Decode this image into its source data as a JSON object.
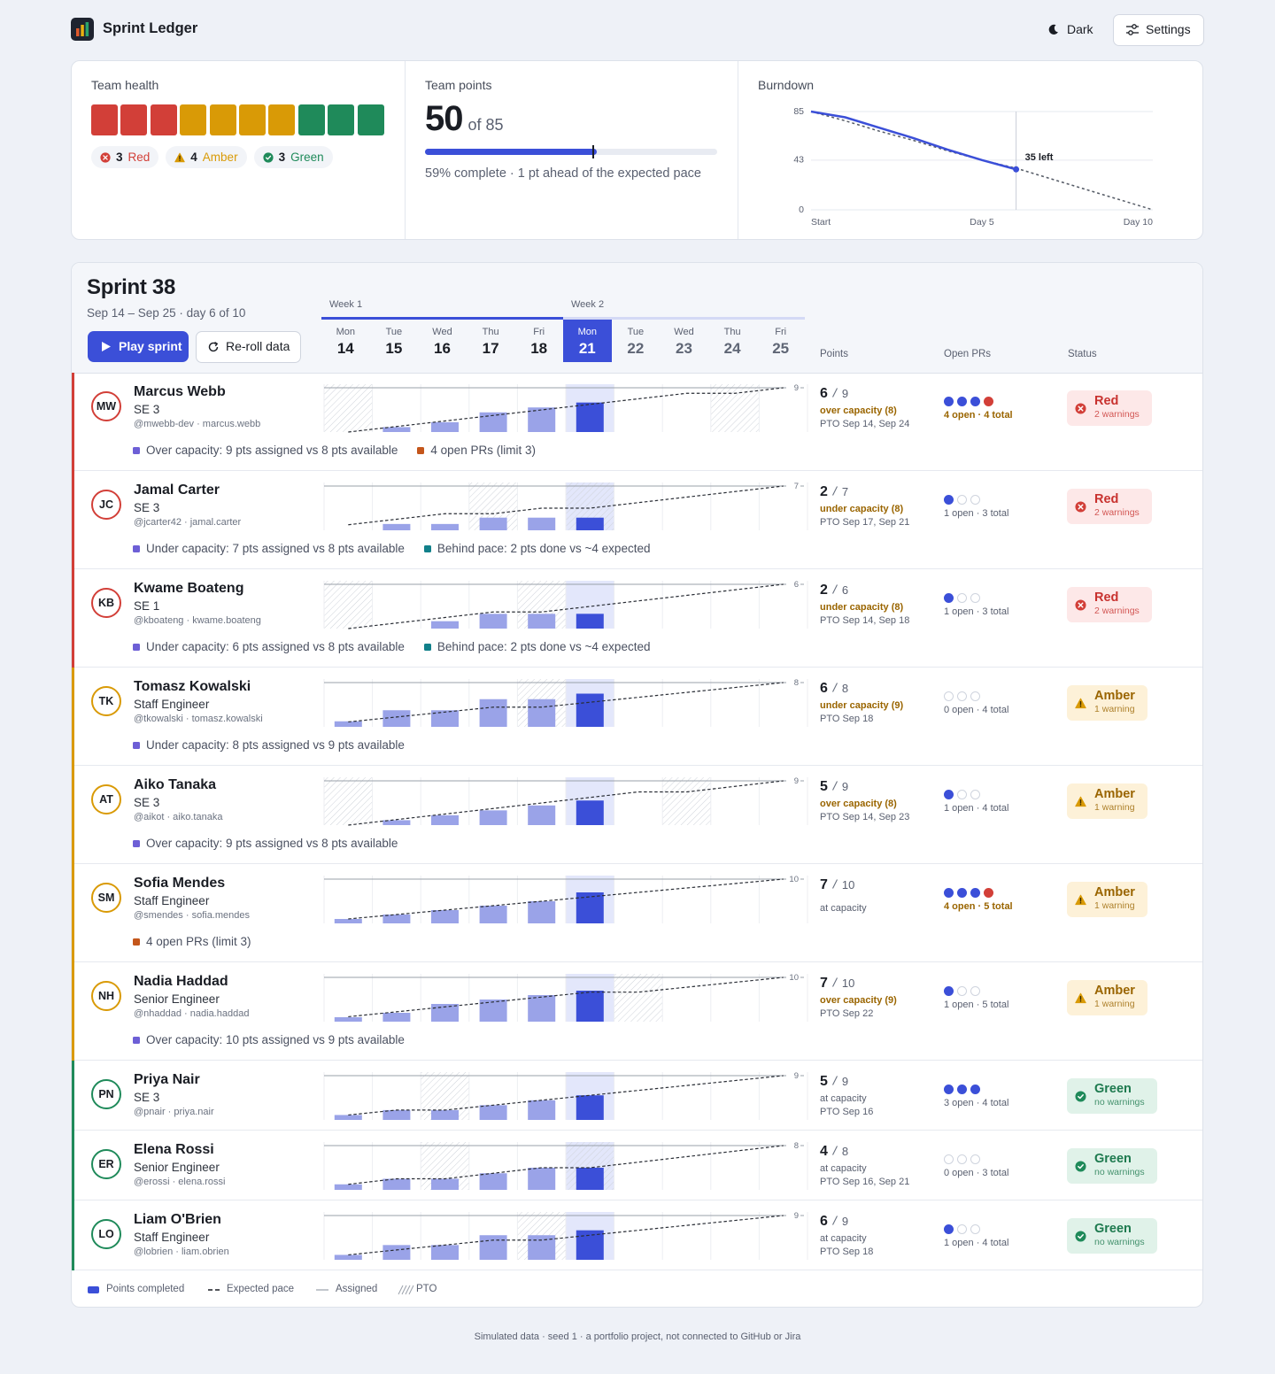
{
  "header": {
    "app_name": "Sprint Ledger",
    "theme_button": "Dark",
    "settings_button": "Settings"
  },
  "team_health": {
    "title": "Team health",
    "groups": [
      {
        "count": 3,
        "label": "Red",
        "color": "#d23f38",
        "icon": "x"
      },
      {
        "count": 4,
        "label": "Amber",
        "color": "#d99a06",
        "icon": "warn"
      },
      {
        "count": 3,
        "label": "Green",
        "color": "#1f8a5a",
        "icon": "check"
      }
    ]
  },
  "team_points": {
    "title": "Team points",
    "done": 50,
    "total": 85,
    "total_label": "of 85",
    "expected": 49,
    "note": "59% complete · 1 pt ahead of the expected pace"
  },
  "chart_data": {
    "type": "line",
    "title": "Burndown",
    "x": [
      0,
      1,
      2,
      3,
      4,
      5,
      6,
      7,
      8,
      9,
      10
    ],
    "xlim": [
      0,
      10
    ],
    "xticks": [
      {
        "value": 0,
        "label": "Start"
      },
      {
        "value": 5,
        "label": "Day 5"
      },
      {
        "value": 10,
        "label": "Day 10"
      }
    ],
    "ylim": [
      0,
      85
    ],
    "yticks": [
      0,
      43,
      85
    ],
    "grid": true,
    "series": [
      {
        "color": "#3b4fd8",
        "style": "solid",
        "values": [
          85,
          80,
          71,
          62,
          52,
          43,
          35,
          null,
          null,
          null,
          null
        ]
      },
      {
        "color": "#555b66",
        "style": "dashed",
        "values": [
          85,
          77,
          68,
          60,
          51,
          43,
          36,
          27,
          18,
          9,
          0
        ]
      }
    ],
    "annotation": {
      "x": 6,
      "label": "35 left"
    }
  },
  "sprint": {
    "title": "Sprint 38",
    "subtitle": "Sep 14 – Sep 25 · day 6 of 10",
    "play_button": "Play sprint",
    "reroll_button": "Re-roll data",
    "weeks": [
      "Week 1",
      "Week 2"
    ],
    "days": [
      {
        "dow": "Mon",
        "date": 14
      },
      {
        "dow": "Tue",
        "date": 15
      },
      {
        "dow": "Wed",
        "date": 16
      },
      {
        "dow": "Thu",
        "date": 17
      },
      {
        "dow": "Fri",
        "date": 18
      },
      {
        "dow": "Mon",
        "date": 21
      },
      {
        "dow": "Tue",
        "date": 22
      },
      {
        "dow": "Wed",
        "date": 23
      },
      {
        "dow": "Thu",
        "date": 24
      },
      {
        "dow": "Fri",
        "date": 25
      }
    ],
    "today": 21,
    "columns": [
      "Points",
      "Open PRs",
      "Status"
    ],
    "members": [
      {
        "initials": "MW",
        "name": "Marcus Webb",
        "role": "SE 3",
        "handle": "@mwebb-dev · marcus.webb",
        "warnings": [
          {
            "text": "Over capacity: 9 pts assigned vs 8 pts available",
            "color": "#6d5fd6"
          },
          {
            "text": "4 open PRs (limit 3)",
            "color": "#c4561b"
          }
        ],
        "assigned": 9,
        "done": 6,
        "completed": [
          0,
          1,
          2,
          4,
          5,
          6
        ],
        "pto_days": [
          14,
          24
        ],
        "capacity": "over capacity (8)",
        "capacity_color": "#9a6500",
        "pto": "PTO Sep 14, Sep 24",
        "prs_open": 4,
        "prs_text": "4 open · 4 total",
        "prs_color": "#9a6500",
        "status": "Red",
        "status_note": "2 warnings",
        "icon": "x",
        "color": "#d23f38",
        "badge_bg": "#fde8e8",
        "badge_text": "#c8322f"
      },
      {
        "initials": "JC",
        "name": "Jamal Carter",
        "role": "SE 3",
        "handle": "@jcarter42 · jamal.carter",
        "warnings": [
          {
            "text": "Under capacity: 7 pts assigned vs 8 pts available",
            "color": "#6d5fd6"
          },
          {
            "text": "Behind pace: 2 pts done vs ~4 expected",
            "color": "#11808a"
          }
        ],
        "assigned": 7,
        "done": 2,
        "completed": [
          0,
          1,
          1,
          2,
          2,
          2
        ],
        "pto_days": [
          17,
          21
        ],
        "capacity": "under capacity (8)",
        "capacity_color": "#9a6500",
        "pto": "PTO Sep 17, Sep 21",
        "prs_open": 1,
        "prs_text": "1 open · 3 total",
        "status": "Red",
        "status_note": "2 warnings",
        "icon": "x",
        "color": "#d23f38",
        "badge_bg": "#fde8e8",
        "badge_text": "#c8322f"
      },
      {
        "initials": "KB",
        "name": "Kwame Boateng",
        "role": "SE 1",
        "handle": "@kboateng · kwame.boateng",
        "warnings": [
          {
            "text": "Under capacity: 6 pts assigned vs 8 pts available",
            "color": "#6d5fd6"
          },
          {
            "text": "Behind pace: 2 pts done vs ~4 expected",
            "color": "#11808a"
          }
        ],
        "assigned": 6,
        "done": 2,
        "completed": [
          0,
          0,
          1,
          2,
          2,
          2
        ],
        "pto_days": [
          14,
          18
        ],
        "capacity": "under capacity (8)",
        "capacity_color": "#9a6500",
        "pto": "PTO Sep 14, Sep 18",
        "prs_open": 1,
        "prs_text": "1 open · 3 total",
        "status": "Red",
        "status_note": "2 warnings",
        "icon": "x",
        "color": "#d23f38",
        "badge_bg": "#fde8e8",
        "badge_text": "#c8322f"
      },
      {
        "initials": "TK",
        "name": "Tomasz Kowalski",
        "role": "Staff Engineer",
        "handle": "@tkowalski · tomasz.kowalski",
        "warnings": [
          {
            "text": "Under capacity: 8 pts assigned vs 9 pts available",
            "color": "#6d5fd6"
          }
        ],
        "assigned": 8,
        "done": 6,
        "completed": [
          1,
          3,
          3,
          5,
          5,
          6
        ],
        "pto_days": [
          18
        ],
        "capacity": "under capacity (9)",
        "capacity_color": "#9a6500",
        "pto": "PTO Sep 18",
        "prs_open": 0,
        "prs_text": "0 open · 4 total",
        "status": "Amber",
        "status_note": "1 warning",
        "icon": "warn",
        "color": "#d99a06",
        "badge_bg": "#fdf1d8",
        "badge_text": "#9a6500"
      },
      {
        "initials": "AT",
        "name": "Aiko Tanaka",
        "role": "SE 3",
        "handle": "@aikot · aiko.tanaka",
        "warnings": [
          {
            "text": "Over capacity: 9 pts assigned vs 8 pts available",
            "color": "#6d5fd6"
          }
        ],
        "assigned": 9,
        "done": 5,
        "completed": [
          0,
          1,
          2,
          3,
          4,
          5
        ],
        "pto_days": [
          14,
          23
        ],
        "capacity": "over capacity (8)",
        "capacity_color": "#9a6500",
        "pto": "PTO Sep 14, Sep 23",
        "prs_open": 1,
        "prs_text": "1 open · 4 total",
        "status": "Amber",
        "status_note": "1 warning",
        "icon": "warn",
        "color": "#d99a06",
        "badge_bg": "#fdf1d8",
        "badge_text": "#9a6500"
      },
      {
        "initials": "SM",
        "name": "Sofia Mendes",
        "role": "Staff Engineer",
        "handle": "@smendes · sofia.mendes",
        "warnings": [
          {
            "text": "4 open PRs (limit 3)",
            "color": "#c4561b"
          }
        ],
        "assigned": 10,
        "done": 7,
        "completed": [
          1,
          2,
          3,
          4,
          5,
          7
        ],
        "pto_days": [],
        "capacity": "at capacity",
        "prs_open": 4,
        "prs_text": "4 open · 5 total",
        "prs_color": "#9a6500",
        "status": "Amber",
        "status_note": "1 warning",
        "icon": "warn",
        "color": "#d99a06",
        "badge_bg": "#fdf1d8",
        "badge_text": "#9a6500"
      },
      {
        "initials": "NH",
        "name": "Nadia Haddad",
        "role": "Senior Engineer",
        "handle": "@nhaddad · nadia.haddad",
        "warnings": [
          {
            "text": "Over capacity: 10 pts assigned vs 9 pts available",
            "color": "#6d5fd6"
          }
        ],
        "assigned": 10,
        "done": 7,
        "completed": [
          1,
          2,
          4,
          5,
          6,
          7
        ],
        "pto_days": [
          22
        ],
        "capacity": "over capacity (9)",
        "capacity_color": "#9a6500",
        "pto": "PTO Sep 22",
        "prs_open": 1,
        "prs_text": "1 open · 5 total",
        "status": "Amber",
        "status_note": "1 warning",
        "icon": "warn",
        "color": "#d99a06",
        "badge_bg": "#fdf1d8",
        "badge_text": "#9a6500"
      },
      {
        "initials": "PN",
        "name": "Priya Nair",
        "role": "SE 3",
        "handle": "@pnair · priya.nair",
        "warnings": [],
        "assigned": 9,
        "done": 5,
        "completed": [
          1,
          2,
          2,
          3,
          4,
          5
        ],
        "pto_days": [
          16
        ],
        "capacity": "at capacity",
        "pto": "PTO Sep 16",
        "prs_open": 3,
        "prs_text": "3 open · 4 total",
        "status": "Green",
        "status_note": "no warnings",
        "icon": "check",
        "color": "#1f8a5a",
        "badge_bg": "#e0f2e9",
        "badge_text": "#1e7a4f"
      },
      {
        "initials": "ER",
        "name": "Elena Rossi",
        "role": "Senior Engineer",
        "handle": "@erossi · elena.rossi",
        "warnings": [],
        "assigned": 8,
        "done": 4,
        "completed": [
          1,
          2,
          2,
          3,
          4,
          4
        ],
        "pto_days": [
          16,
          21
        ],
        "capacity": "at capacity",
        "pto": "PTO Sep 16, Sep 21",
        "prs_open": 0,
        "prs_text": "0 open · 3 total",
        "status": "Green",
        "status_note": "no warnings",
        "icon": "check",
        "color": "#1f8a5a",
        "badge_bg": "#e0f2e9",
        "badge_text": "#1e7a4f"
      },
      {
        "initials": "LO",
        "name": "Liam O'Brien",
        "role": "Staff Engineer",
        "handle": "@lobrien · liam.obrien",
        "warnings": [],
        "assigned": 9,
        "done": 6,
        "completed": [
          1,
          3,
          3,
          5,
          5,
          6
        ],
        "pto_days": [
          18
        ],
        "capacity": "at capacity",
        "pto": "PTO Sep 18",
        "prs_open": 1,
        "prs_text": "1 open · 4 total",
        "status": "Green",
        "status_note": "no warnings",
        "icon": "check",
        "color": "#1f8a5a",
        "badge_bg": "#e0f2e9",
        "badge_text": "#1e7a4f"
      }
    ]
  },
  "legend": {
    "completed": "Points completed",
    "expected": "Expected pace",
    "assigned": "Assigned",
    "pto": "PTO"
  },
  "footer": "Simulated data · seed 1 · a portfolio project, not connected to GitHub or Jira"
}
